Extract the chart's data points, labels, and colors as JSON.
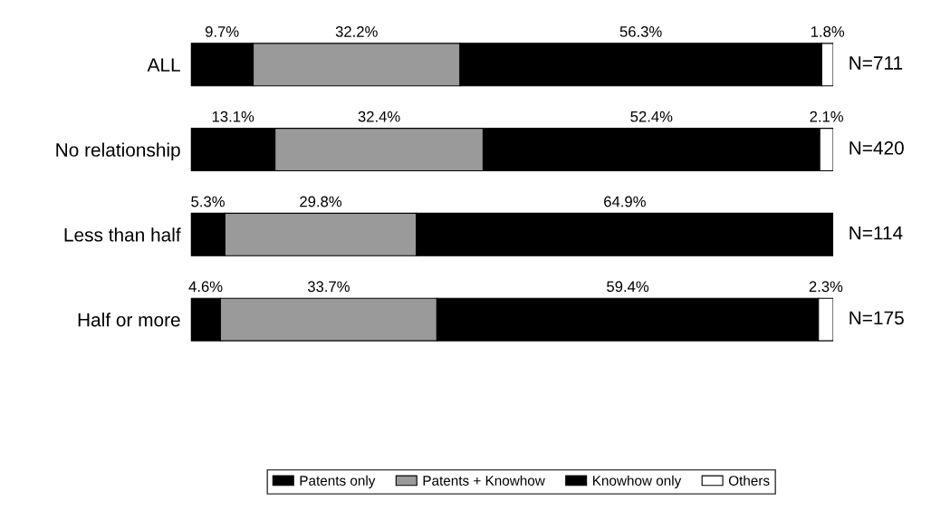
{
  "chart_data": {
    "type": "bar",
    "orientation": "horizontal",
    "stacked": true,
    "tick_labels": "y",
    "grid": false,
    "legend": "bottom",
    "categories": [
      "ALL",
      "No relationship",
      "Less than half",
      "Half or more"
    ],
    "series": [
      {
        "name": "Patents only",
        "color": "#000000",
        "values": [
          9.7,
          13.1,
          5.3,
          4.6
        ],
        "value_labels": [
          "9.7%",
          "13.1%",
          "5.3%",
          "4.6%"
        ]
      },
      {
        "name": "Patents + Knowhow",
        "color": "#9a9a9a",
        "values": [
          32.2,
          32.4,
          29.8,
          33.7
        ],
        "value_labels": [
          "32.2%",
          "32.4%",
          "29.8%",
          "33.7%"
        ]
      },
      {
        "name": "Knowhow only",
        "color": "#000000",
        "values": [
          56.3,
          52.4,
          64.9,
          59.4
        ],
        "value_labels": [
          "56.3%",
          "52.4%",
          "64.9%",
          "59.4%"
        ]
      },
      {
        "name": "Others",
        "color": "#ffffff",
        "values": [
          1.8,
          2.1,
          null,
          2.3
        ],
        "value_labels": [
          "1.8%",
          "2.1%",
          null,
          "2.3%"
        ]
      }
    ],
    "annotations": [
      "N=711",
      "N=420",
      "N=114",
      "N=175"
    ]
  }
}
